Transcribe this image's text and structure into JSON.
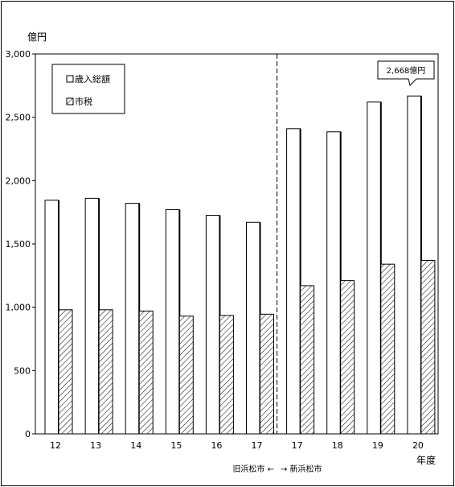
{
  "chart_data": {
    "type": "bar",
    "y_unit_label": "億円",
    "x_unit_label": "年度",
    "categories": [
      "12",
      "13",
      "14",
      "15",
      "16",
      "17",
      "17",
      "18",
      "19",
      "20"
    ],
    "series": [
      {
        "name": "歳入総額",
        "values": [
          1845,
          1860,
          1820,
          1770,
          1725,
          1670,
          2410,
          2385,
          2620,
          2668
        ]
      },
      {
        "name": "市税",
        "values": [
          980,
          980,
          970,
          930,
          935,
          945,
          1170,
          1210,
          1340,
          1370
        ]
      }
    ],
    "ylim": [
      0,
      3000
    ],
    "yticks": [
      "0",
      "500",
      "1,000",
      "1,500",
      "2,000",
      "2,500",
      "3,000"
    ],
    "legend_position": "top-left",
    "grid": false,
    "divider": {
      "after_index": 5,
      "left_label": "旧浜松市 ←",
      "right_label": "→ 新浜松市"
    },
    "callout": {
      "text": "2,668億円",
      "series": 0,
      "index": 9
    }
  }
}
